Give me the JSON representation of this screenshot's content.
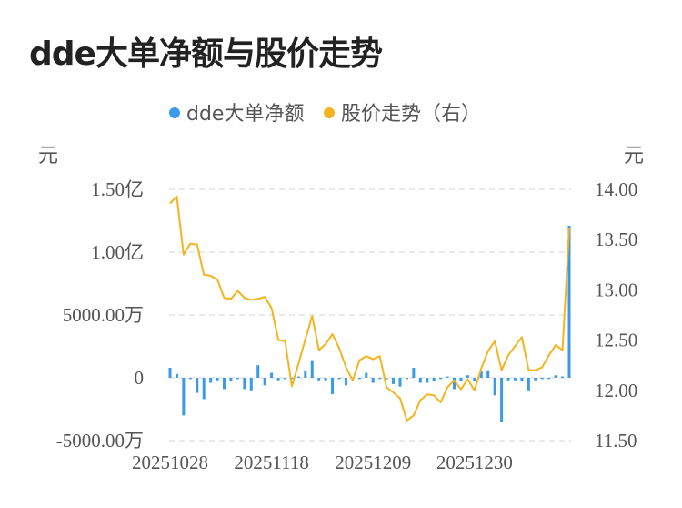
{
  "title": "dde大单净额与股价走势",
  "colors": {
    "bar": "#3a9ae8",
    "line": "#f5b41e",
    "grid": "#e4e4e4",
    "text": "#555555"
  },
  "chart_data": {
    "type": "bar+line",
    "legend": {
      "position": "top-center",
      "items": [
        {
          "name": "dde大单净额",
          "color": "#3a9ae8"
        },
        {
          "name": "股价走势（右）",
          "color": "#f5b41e"
        }
      ]
    },
    "left_axis": {
      "unit": "元",
      "ticks": [
        {
          "value": -50000000,
          "label": "-5000.00万"
        },
        {
          "value": 0,
          "label": "0"
        },
        {
          "value": 50000000,
          "label": "5000.00万"
        },
        {
          "value": 100000000,
          "label": "1.00亿"
        },
        {
          "value": 150000000,
          "label": "1.50亿"
        }
      ],
      "range": [
        -50000000,
        150000000
      ]
    },
    "right_axis": {
      "unit": "元",
      "ticks": [
        {
          "value": 11.5,
          "label": "11.50"
        },
        {
          "value": 12.0,
          "label": "12.00"
        },
        {
          "value": 12.5,
          "label": "12.50"
        },
        {
          "value": 13.0,
          "label": "13.00"
        },
        {
          "value": 13.5,
          "label": "13.50"
        },
        {
          "value": 14.0,
          "label": "14.00"
        }
      ],
      "range": [
        11.5,
        14.0
      ]
    },
    "x_labels": [
      {
        "index": 0,
        "label": "20251028"
      },
      {
        "index": 15,
        "label": "20251118"
      },
      {
        "index": 30,
        "label": "20251209"
      },
      {
        "index": 45,
        "label": "20251230"
      }
    ],
    "grid": true,
    "series": [
      {
        "name": "dde大单净额",
        "type": "bar",
        "axis": "left",
        "values": [
          8000000,
          3000000,
          -30000000,
          -1000000,
          -12000000,
          -17000000,
          -4000000,
          -2000000,
          -9000000,
          -3000000,
          -1000000,
          -9000000,
          -10000000,
          10000000,
          -6000000,
          4000000,
          -2000000,
          -1000000,
          -1000000,
          1000000,
          5000000,
          14000000,
          -2000000,
          -2000000,
          -13000000,
          -1000000,
          -6000000,
          -1000000,
          -1000000,
          4000000,
          -4000000,
          -1000000,
          -1000000,
          -5000000,
          -7000000,
          -1000000,
          8000000,
          -4000000,
          -4000000,
          -3000000,
          -1000000,
          1000000,
          -9000000,
          -3000000,
          2000000,
          -3000000,
          5000000,
          6000000,
          -14000000,
          -35000000,
          -2000000,
          -2000000,
          -3000000,
          -10000000,
          -2000000,
          -1000000,
          -1000000,
          2000000,
          1000000,
          121000000
        ]
      },
      {
        "name": "股价走势（右）",
        "type": "line",
        "axis": "right",
        "values": [
          13.86,
          13.93,
          13.35,
          13.46,
          13.45,
          13.15,
          13.14,
          13.1,
          12.92,
          12.91,
          12.99,
          12.92,
          12.9,
          12.91,
          12.93,
          12.82,
          12.5,
          12.49,
          12.04,
          12.27,
          12.51,
          12.74,
          12.4,
          12.46,
          12.56,
          12.42,
          12.23,
          12.1,
          12.3,
          12.34,
          12.31,
          12.34,
          12.03,
          11.98,
          11.92,
          11.7,
          11.75,
          11.9,
          11.96,
          11.95,
          11.88,
          12.03,
          12.1,
          12.01,
          12.11,
          12.0,
          12.22,
          12.39,
          12.49,
          12.2,
          12.35,
          12.44,
          12.53,
          12.2,
          12.2,
          12.23,
          12.35,
          12.45,
          12.4,
          13.62
        ]
      }
    ]
  }
}
